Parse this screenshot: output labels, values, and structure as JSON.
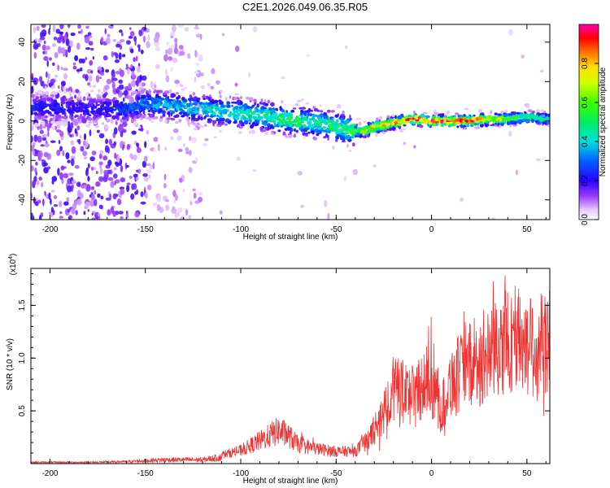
{
  "title": "C2E1.2026.049.06.35.R05",
  "chart_data": [
    {
      "type": "heatmap",
      "name": "spectrogram",
      "xlabel": "Height of straight line (km)",
      "ylabel": "Frequency (Hz)",
      "xlim": [
        -210,
        62
      ],
      "ylim": [
        -50,
        49
      ],
      "xticks": [
        -200,
        -150,
        -100,
        -50,
        0,
        50
      ],
      "yticks": [
        -40,
        -20,
        0,
        20,
        40
      ],
      "colorbar": {
        "label": "Normalized spectral amplitude",
        "range": [
          0,
          1
        ],
        "ticks": [
          "0.0",
          "0.2",
          "0.4",
          "0.6",
          "0.8"
        ],
        "tick_values": [
          0,
          0.2,
          0.4,
          0.6,
          0.8
        ]
      },
      "ridge": [
        {
          "x": -205,
          "f": 7,
          "amp": 0.25
        },
        {
          "x": -180,
          "f": 6,
          "amp": 0.22
        },
        {
          "x": -160,
          "f": 6,
          "amp": 0.28
        },
        {
          "x": -150,
          "f": 9,
          "amp": 0.35
        },
        {
          "x": -140,
          "f": 8,
          "amp": 0.38
        },
        {
          "x": -130,
          "f": 7,
          "amp": 0.4
        },
        {
          "x": -120,
          "f": 6,
          "amp": 0.42
        },
        {
          "x": -110,
          "f": 5,
          "amp": 0.45
        },
        {
          "x": -100,
          "f": 4,
          "amp": 0.48
        },
        {
          "x": -90,
          "f": 3,
          "amp": 0.5
        },
        {
          "x": -80,
          "f": 1,
          "amp": 0.52
        },
        {
          "x": -70,
          "f": 0,
          "amp": 0.52
        },
        {
          "x": -60,
          "f": -1,
          "amp": 0.5
        },
        {
          "x": -50,
          "f": -3,
          "amp": 0.52
        },
        {
          "x": -40,
          "f": -5,
          "amp": 0.58
        },
        {
          "x": -35,
          "f": -5,
          "amp": 0.75
        },
        {
          "x": -30,
          "f": -3,
          "amp": 0.8
        },
        {
          "x": -20,
          "f": -1,
          "amp": 0.85
        },
        {
          "x": -10,
          "f": 1,
          "amp": 0.92
        },
        {
          "x": 0,
          "f": 0,
          "amp": 0.95
        },
        {
          "x": 10,
          "f": 0,
          "amp": 0.95
        },
        {
          "x": 20,
          "f": 0,
          "amp": 0.92
        },
        {
          "x": 30,
          "f": 1,
          "amp": 0.8
        },
        {
          "x": 40,
          "f": 1,
          "amp": 0.65
        },
        {
          "x": 50,
          "f": 2,
          "amp": 0.55
        },
        {
          "x": 62,
          "f": 1,
          "amp": 0.5
        }
      ]
    },
    {
      "type": "line",
      "name": "snr",
      "xlabel": "Height of straight line (km)",
      "ylabel": "SNR (10 * v/v)",
      "y_multiplier": "(x10",
      "y_multiplier_exp": "4",
      "y_multiplier_close": ")",
      "xlim": [
        -210,
        62
      ],
      "ylim": [
        0,
        1.85
      ],
      "xticks": [
        -200,
        -150,
        -100,
        -50,
        0,
        50
      ],
      "yticks": [
        0.5,
        1.0,
        1.5
      ],
      "ytick_labels": [
        "0.5",
        "1.0",
        "1.5"
      ],
      "color": "#ee3333",
      "envelope": [
        {
          "x": -210,
          "y": 0.02
        },
        {
          "x": -180,
          "y": 0.02
        },
        {
          "x": -160,
          "y": 0.03
        },
        {
          "x": -140,
          "y": 0.06
        },
        {
          "x": -120,
          "y": 0.06
        },
        {
          "x": -110,
          "y": 0.1
        },
        {
          "x": -100,
          "y": 0.15
        },
        {
          "x": -90,
          "y": 0.26
        },
        {
          "x": -80,
          "y": 0.38
        },
        {
          "x": -75,
          "y": 0.32
        },
        {
          "x": -70,
          "y": 0.22
        },
        {
          "x": -60,
          "y": 0.17
        },
        {
          "x": -50,
          "y": 0.14
        },
        {
          "x": -40,
          "y": 0.14
        },
        {
          "x": -32,
          "y": 0.3
        },
        {
          "x": -25,
          "y": 0.62
        },
        {
          "x": -20,
          "y": 0.85
        },
        {
          "x": -10,
          "y": 0.8
        },
        {
          "x": -5,
          "y": 0.92
        },
        {
          "x": 0,
          "y": 0.95
        },
        {
          "x": 5,
          "y": 0.6
        },
        {
          "x": 10,
          "y": 0.95
        },
        {
          "x": 20,
          "y": 1.12
        },
        {
          "x": 30,
          "y": 1.25
        },
        {
          "x": 40,
          "y": 1.42
        },
        {
          "x": 45,
          "y": 1.45
        },
        {
          "x": 50,
          "y": 1.35
        },
        {
          "x": 55,
          "y": 1.38
        },
        {
          "x": 62,
          "y": 1.4
        }
      ]
    }
  ]
}
